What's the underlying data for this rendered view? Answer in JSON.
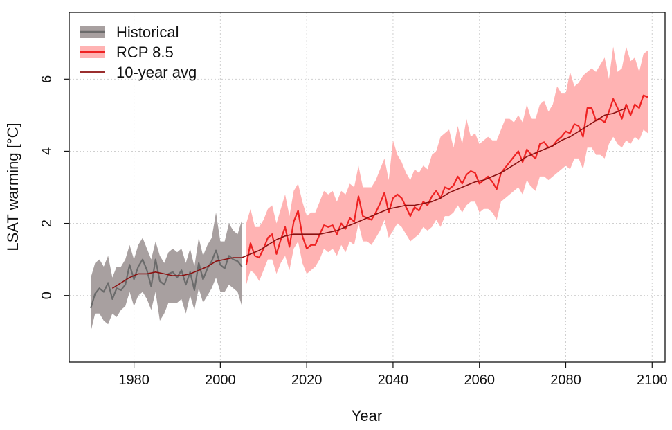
{
  "chart_data": {
    "type": "line",
    "title": "",
    "xlabel": "Year",
    "ylabel": "LSAT warming [°C]",
    "xlim": [
      1965,
      2103
    ],
    "ylim": [
      -1.85,
      7.85
    ],
    "xticks": [
      1980,
      2000,
      2020,
      2040,
      2060,
      2080,
      2100
    ],
    "yticks": [
      0,
      2,
      4,
      6
    ],
    "grid": true,
    "legend_position": "top-left",
    "colors": {
      "historical_band": "#a8a0a0",
      "historical_line": "#6b6b6b",
      "rcp_band": "#ffb3b3",
      "rcp_line": "#ee2222",
      "avg_line": "#8b1010"
    },
    "legend": [
      {
        "label": "Historical",
        "kind": "band",
        "band_color": "#a8a0a0",
        "line_color": "#6b6b6b"
      },
      {
        "label": "RCP 8.5",
        "kind": "band",
        "band_color": "#ffb3b3",
        "line_color": "#ee2222"
      },
      {
        "label": "10-year avg",
        "kind": "line",
        "line_color": "#8b1010"
      }
    ],
    "series": [
      {
        "name": "Historical",
        "x": [
          1970,
          1971,
          1972,
          1973,
          1974,
          1975,
          1976,
          1977,
          1978,
          1979,
          1980,
          1981,
          1982,
          1983,
          1984,
          1985,
          1986,
          1987,
          1988,
          1989,
          1990,
          1991,
          1992,
          1993,
          1994,
          1995,
          1996,
          1997,
          1998,
          1999,
          2000,
          2001,
          2002,
          2003,
          2004,
          2005
        ],
        "y": [
          -0.35,
          0.05,
          0.2,
          0.1,
          0.35,
          -0.1,
          0.2,
          0.15,
          0.3,
          0.85,
          0.45,
          0.8,
          1.0,
          0.7,
          0.25,
          1.0,
          0.4,
          0.3,
          0.6,
          0.65,
          0.5,
          0.7,
          0.3,
          0.65,
          0.15,
          0.9,
          0.45,
          0.75,
          0.95,
          1.25,
          0.85,
          0.75,
          1.1,
          1.0,
          0.95,
          0.8
        ],
        "lower": [
          -1.0,
          -0.5,
          -0.5,
          -0.7,
          -0.8,
          -0.5,
          -0.6,
          -0.4,
          -0.3,
          0.1,
          -0.3,
          0.0,
          0.1,
          -0.1,
          -0.4,
          0.1,
          -0.7,
          -0.5,
          -0.2,
          -0.2,
          -0.2,
          -0.1,
          -0.5,
          0.0,
          -0.4,
          0.2,
          -0.2,
          0.0,
          0.2,
          0.5,
          0.1,
          0.1,
          0.3,
          0.2,
          0.1,
          -0.3
        ],
        "upper": [
          0.5,
          0.9,
          1.0,
          0.8,
          1.1,
          0.5,
          0.8,
          0.8,
          1.0,
          1.4,
          1.0,
          1.4,
          1.6,
          1.3,
          1.0,
          1.5,
          1.1,
          0.9,
          1.2,
          1.3,
          1.2,
          1.3,
          0.9,
          1.3,
          0.8,
          1.6,
          1.1,
          1.4,
          1.6,
          2.3,
          1.5,
          1.5,
          2.0,
          1.8,
          1.7,
          2.1
        ]
      },
      {
        "name": "RCP 8.5",
        "x": [
          2006,
          2007,
          2008,
          2009,
          2010,
          2011,
          2012,
          2013,
          2014,
          2015,
          2016,
          2017,
          2018,
          2019,
          2020,
          2021,
          2022,
          2023,
          2024,
          2025,
          2026,
          2027,
          2028,
          2029,
          2030,
          2031,
          2032,
          2033,
          2034,
          2035,
          2036,
          2037,
          2038,
          2039,
          2040,
          2041,
          2042,
          2043,
          2044,
          2045,
          2046,
          2047,
          2048,
          2049,
          2050,
          2051,
          2052,
          2053,
          2054,
          2055,
          2056,
          2057,
          2058,
          2059,
          2060,
          2061,
          2062,
          2063,
          2064,
          2065,
          2066,
          2067,
          2068,
          2069,
          2070,
          2071,
          2072,
          2073,
          2074,
          2075,
          2076,
          2077,
          2078,
          2079,
          2080,
          2081,
          2082,
          2083,
          2084,
          2085,
          2086,
          2087,
          2088,
          2089,
          2090,
          2091,
          2092,
          2093,
          2094,
          2095,
          2096,
          2097,
          2098,
          2099
        ],
        "y": [
          0.85,
          1.45,
          1.1,
          1.05,
          1.3,
          1.6,
          1.7,
          1.15,
          1.55,
          1.9,
          1.35,
          2.05,
          2.35,
          1.65,
          1.3,
          1.4,
          1.4,
          1.7,
          1.95,
          1.9,
          1.95,
          1.7,
          2.0,
          1.85,
          2.15,
          2.05,
          2.75,
          2.2,
          2.15,
          2.1,
          2.3,
          2.55,
          2.85,
          2.3,
          2.7,
          2.8,
          2.7,
          2.45,
          2.2,
          2.45,
          2.35,
          2.6,
          2.5,
          2.75,
          2.9,
          2.7,
          3.0,
          2.95,
          3.05,
          3.3,
          3.1,
          3.35,
          3.45,
          3.4,
          3.1,
          3.2,
          3.3,
          3.15,
          2.95,
          3.4,
          3.55,
          3.7,
          3.85,
          4.0,
          3.7,
          4.05,
          3.9,
          3.8,
          4.2,
          4.25,
          4.1,
          4.15,
          4.3,
          4.4,
          4.55,
          4.5,
          4.75,
          4.7,
          4.4,
          5.2,
          5.2,
          4.85,
          4.9,
          4.8,
          5.1,
          5.45,
          5.2,
          4.9,
          5.3,
          5.0,
          5.3,
          5.2,
          5.55,
          5.5
        ],
        "lower": [
          0.3,
          0.7,
          0.6,
          0.4,
          0.7,
          1.0,
          1.0,
          0.6,
          0.9,
          1.1,
          0.7,
          1.3,
          1.5,
          0.9,
          0.6,
          0.7,
          0.8,
          1.0,
          1.3,
          1.2,
          1.3,
          1.1,
          1.4,
          1.2,
          1.5,
          1.4,
          2.0,
          1.5,
          1.5,
          1.4,
          1.6,
          1.8,
          2.1,
          1.6,
          1.8,
          2.0,
          1.9,
          1.7,
          1.5,
          1.6,
          1.7,
          1.9,
          1.8,
          1.9,
          2.1,
          1.9,
          2.2,
          2.2,
          2.3,
          2.5,
          2.3,
          2.5,
          2.6,
          2.6,
          2.3,
          2.4,
          2.4,
          2.3,
          2.1,
          2.6,
          2.7,
          2.8,
          2.9,
          3.0,
          2.8,
          3.2,
          3.0,
          2.9,
          3.3,
          3.3,
          3.2,
          3.3,
          3.4,
          3.5,
          3.6,
          3.5,
          3.8,
          3.8,
          3.5,
          4.1,
          4.1,
          3.9,
          3.9,
          3.8,
          4.2,
          4.4,
          4.2,
          4.1,
          4.3,
          4.2,
          4.4,
          4.3,
          4.6,
          4.5
        ],
        "upper": [
          2.0,
          2.4,
          1.9,
          1.9,
          2.1,
          2.4,
          2.5,
          2.0,
          2.4,
          2.8,
          2.2,
          2.9,
          3.1,
          2.6,
          2.2,
          2.3,
          2.3,
          2.6,
          2.9,
          2.8,
          2.9,
          2.6,
          2.9,
          2.8,
          3.1,
          3.0,
          3.6,
          3.0,
          3.0,
          3.0,
          3.2,
          3.5,
          3.8,
          3.2,
          4.3,
          3.9,
          3.7,
          3.4,
          3.2,
          3.5,
          3.4,
          3.6,
          3.5,
          3.9,
          4.0,
          4.4,
          4.5,
          4.6,
          4.1,
          4.7,
          4.2,
          4.9,
          4.4,
          4.5,
          4.2,
          4.3,
          4.4,
          4.3,
          4.3,
          4.6,
          4.9,
          4.9,
          4.8,
          5.0,
          4.8,
          5.3,
          4.9,
          4.9,
          5.3,
          5.4,
          5.1,
          5.3,
          5.8,
          5.6,
          5.6,
          6.2,
          5.8,
          5.9,
          6.1,
          6.2,
          6.3,
          6.2,
          6.4,
          6.6,
          6.0,
          6.9,
          6.2,
          6.3,
          6.9,
          6.5,
          6.6,
          6.2,
          6.7,
          6.8
        ]
      },
      {
        "name": "10-year avg",
        "x": [
          1975,
          1977,
          1979,
          1981,
          1983,
          1985,
          1987,
          1989,
          1991,
          1993,
          1995,
          1997,
          1999,
          2001,
          2003,
          2005,
          2007,
          2009,
          2011,
          2013,
          2015,
          2017,
          2019,
          2021,
          2023,
          2025,
          2027,
          2029,
          2031,
          2033,
          2035,
          2037,
          2039,
          2041,
          2043,
          2045,
          2047,
          2049,
          2051,
          2053,
          2055,
          2057,
          2059,
          2061,
          2063,
          2065,
          2067,
          2069,
          2071,
          2073,
          2075,
          2077,
          2079,
          2081,
          2083,
          2085,
          2087,
          2089,
          2091,
          2093,
          2094
        ],
        "y": [
          0.2,
          0.35,
          0.5,
          0.6,
          0.6,
          0.65,
          0.6,
          0.55,
          0.55,
          0.6,
          0.7,
          0.8,
          0.95,
          1.0,
          1.05,
          1.05,
          1.15,
          1.25,
          1.4,
          1.55,
          1.65,
          1.7,
          1.7,
          1.7,
          1.7,
          1.75,
          1.8,
          1.9,
          2.0,
          2.1,
          2.2,
          2.3,
          2.4,
          2.45,
          2.5,
          2.5,
          2.55,
          2.6,
          2.7,
          2.85,
          2.95,
          3.05,
          3.15,
          3.2,
          3.3,
          3.4,
          3.55,
          3.7,
          3.85,
          3.95,
          4.05,
          4.15,
          4.3,
          4.4,
          4.55,
          4.7,
          4.85,
          5.0,
          5.05,
          5.15,
          5.2
        ]
      }
    ]
  }
}
